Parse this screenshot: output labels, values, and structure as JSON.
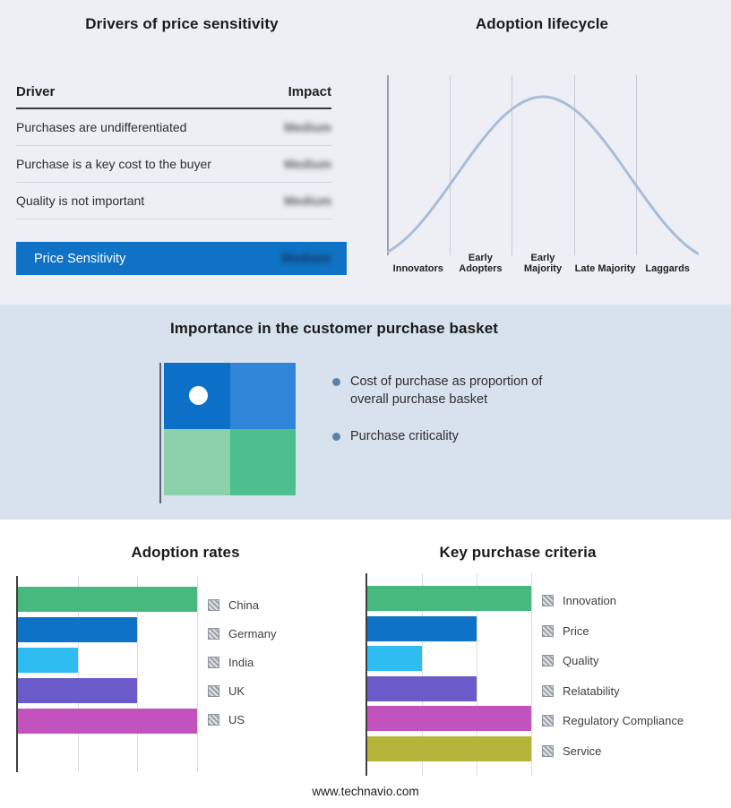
{
  "brand": {
    "footer_url": "www.technavio.com"
  },
  "colors": {
    "accent_blue": "#0F72C4",
    "band_top_bg": "#EDEFF4",
    "band_mid_bg": "#D8E2EE",
    "curve": "#A9BDD8",
    "bullet_dot": "#5E81A8"
  },
  "drivers_panel": {
    "title": "Drivers of price sensitivity",
    "columns": {
      "driver": "Driver",
      "impact": "Impact"
    },
    "rows": [
      {
        "driver": "Purchases are undifferentiated",
        "impact": "Medium",
        "redacted": true
      },
      {
        "driver": "Purchase is a key cost to the buyer",
        "impact": "Medium",
        "redacted": true
      },
      {
        "driver": "Quality is not important",
        "impact": "Medium",
        "redacted": true
      }
    ],
    "summary": {
      "label": "Price Sensitivity",
      "impact": "Medium",
      "redacted": true
    }
  },
  "lifecycle_panel": {
    "title": "Adoption lifecycle",
    "stages": [
      "Innovators",
      "Early Adopters",
      "Early Majority",
      "Late Majority",
      "Laggards"
    ]
  },
  "basket_panel": {
    "title": "Importance in the customer purchase basket",
    "bullets": [
      "Cost of purchase as proportion of overall purchase basket",
      "Purchase criticality"
    ],
    "quadrant": {
      "top_left": "#0C70C8",
      "top_right": "#2F86D9",
      "bottom_left": "#8BD2AB",
      "bottom_right": "#4DBE8D"
    }
  },
  "chart_data": [
    {
      "type": "line",
      "title": "Adoption lifecycle",
      "shape": "bell-curve",
      "categories": [
        "Innovators",
        "Early Adopters",
        "Early Majority",
        "Late Majority",
        "Laggards"
      ],
      "xlabel": "",
      "ylabel": "",
      "grid": true,
      "note": "normal-distribution adoption curve peaking at Early Majority"
    },
    {
      "type": "bar",
      "title": "Adoption rates",
      "orientation": "horizontal",
      "categories": [
        "China",
        "Germany",
        "India",
        "UK",
        "US"
      ],
      "values": [
        3,
        2,
        1,
        2,
        3
      ],
      "xlim": [
        0,
        3
      ],
      "colors": [
        "#45B97E",
        "#0E72C6",
        "#2FBDF1",
        "#6A5BC8",
        "#C253BE"
      ],
      "grid": true,
      "legend_position": "right",
      "legend_marker": "hatched-square"
    },
    {
      "type": "bar",
      "title": "Key purchase criteria",
      "orientation": "horizontal",
      "categories": [
        "Innovation",
        "Price",
        "Quality",
        "Relatability",
        "Regulatory Compliance",
        "Service"
      ],
      "values": [
        3,
        2,
        1,
        2,
        3,
        3
      ],
      "xlim": [
        0,
        3
      ],
      "colors": [
        "#45B97E",
        "#0E72C6",
        "#2FBDF1",
        "#6A5BC8",
        "#C253BE",
        "#B5B53B"
      ],
      "grid": true,
      "legend_position": "right",
      "legend_marker": "hatched-square"
    }
  ]
}
